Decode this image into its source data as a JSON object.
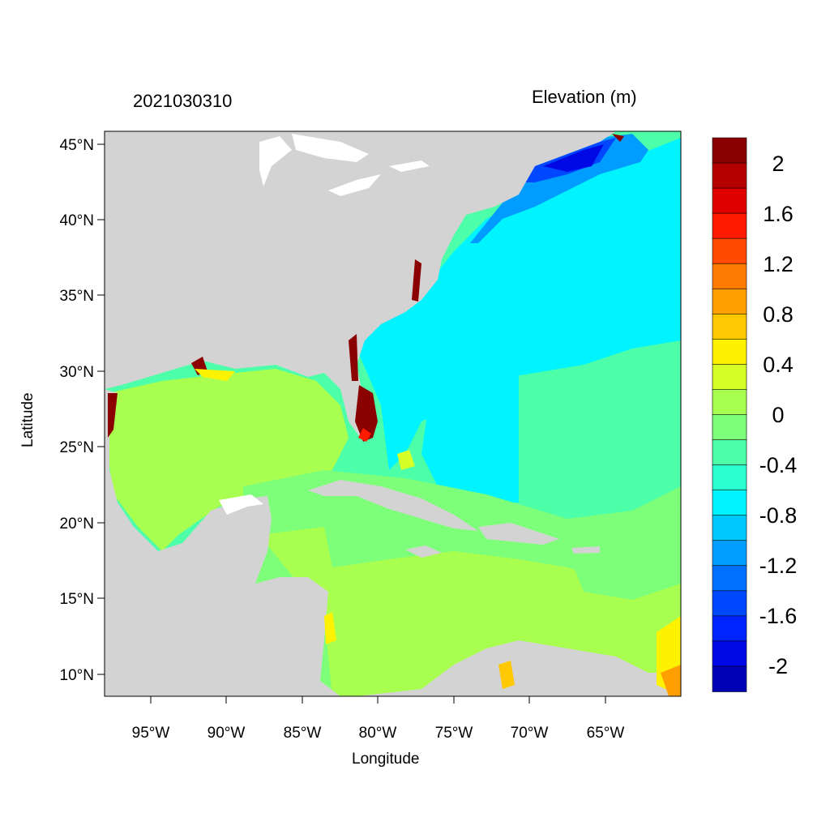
{
  "header": {
    "date": "2021030310",
    "variable": "Elevation (m)"
  },
  "axes": {
    "xlabel": "Longitude",
    "ylabel": "Latitude",
    "x_ticks": [
      "95°W",
      "90°W",
      "85°W",
      "80°W",
      "75°W",
      "70°W",
      "65°W"
    ],
    "y_ticks": [
      "45°N",
      "40°N",
      "35°N",
      "30°N",
      "25°N",
      "20°N",
      "15°N",
      "10°N"
    ]
  },
  "colorbar": {
    "labels": [
      "2",
      "1.6",
      "1.2",
      "0.8",
      "0.4",
      "0",
      "-0.4",
      "-0.8",
      "-1.2",
      "-1.6",
      "-2"
    ],
    "colors": [
      "#8b0000",
      "#b50000",
      "#e00000",
      "#ff1a00",
      "#ff4a00",
      "#ff7a00",
      "#ff9f00",
      "#ffc800",
      "#fff200",
      "#d6ff28",
      "#a8ff50",
      "#7dff7a",
      "#4cffa8",
      "#2affd2",
      "#00f4ff",
      "#00c8ff",
      "#009cff",
      "#0070ff",
      "#0048ff",
      "#0024ff",
      "#0008e6",
      "#0000b4"
    ]
  },
  "map": {
    "region": "Gulf of Mexico, Caribbean Sea and western North Atlantic",
    "lon_range": [
      -98,
      -60
    ],
    "lat_range": [
      8.5,
      46
    ],
    "land_color": "#d3d3d3",
    "lake_color": "#ffffff",
    "frame_color": "#000000"
  }
}
